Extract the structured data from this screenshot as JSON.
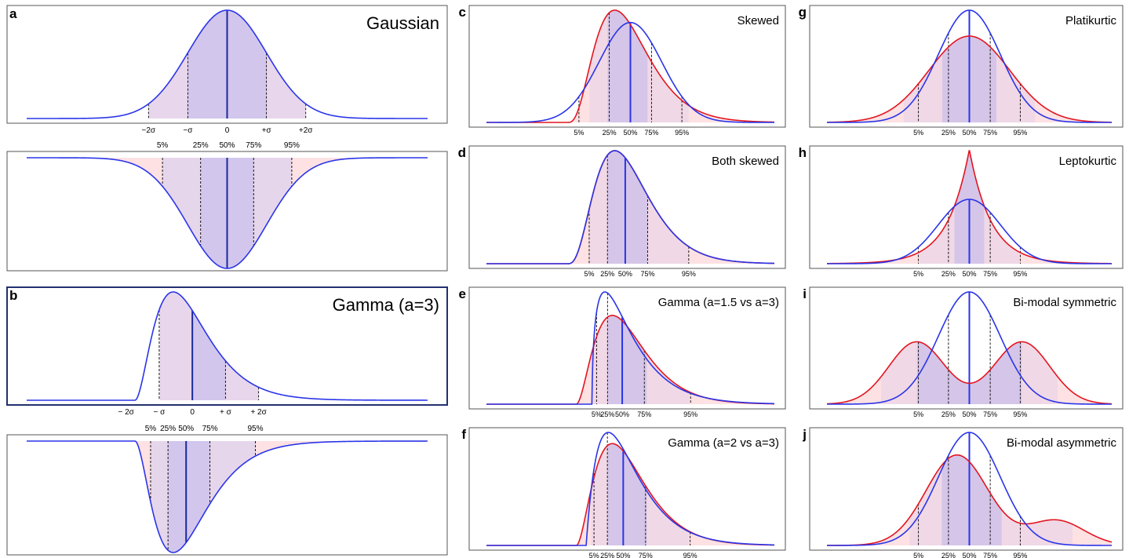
{
  "colors": {
    "reference": "#2a35e8",
    "comparison": "#e3151f",
    "reference_fill": "#d2c6ed",
    "comparison_fill": "#fde1e3"
  },
  "chart_data": [
    {
      "panel": "a",
      "title": "Gaussian",
      "type": "area",
      "dist": "normal",
      "mean": 0,
      "sd": 1,
      "xlim": [
        -5.1,
        5.1
      ],
      "mark_lines": [
        -2,
        -1,
        0,
        1,
        2
      ],
      "tick_labels": [
        "−2σ",
        "−σ",
        "0",
        "+σ",
        "+2σ"
      ],
      "quantile_view": {
        "quantiles": [
          0.05,
          0.25,
          0.5,
          0.75,
          0.95
        ],
        "tick_labels": [
          "5%",
          "25%",
          "50%",
          "75%",
          "95%"
        ]
      }
    },
    {
      "panel": "b",
      "title": "Gamma (a=3)",
      "type": "area",
      "dist": "gamma",
      "shape": 3,
      "xlim": [
        -5,
        7.1
      ],
      "mark_lines": [
        -1,
        0,
        1,
        2
      ],
      "tick_labels": [
        "− 2σ",
        "− σ",
        "0",
        "+ σ",
        "+ 2σ"
      ],
      "quantile_view": {
        "quantiles": [
          0.05,
          0.25,
          0.5,
          0.75,
          0.95
        ],
        "tick_labels": [
          "5%",
          "25%",
          "50%",
          "75%",
          "95%"
        ]
      }
    },
    {
      "panel": "c",
      "title": "Skewed",
      "type": "area",
      "reference": {
        "dist": "normal",
        "mean": 0,
        "sd": 1
      },
      "comparison": {
        "dist": "gamma",
        "shape": 4
      },
      "quantiles": [
        0.05,
        0.25,
        0.5,
        0.75,
        0.95
      ],
      "tick_labels": [
        "5%",
        "25%",
        "50%",
        "75%",
        "95%"
      ]
    },
    {
      "panel": "d",
      "title": "Both skewed",
      "type": "area",
      "reference": {
        "dist": "gamma",
        "shape": 4
      },
      "comparison": {
        "dist": "gamma",
        "shape": 4
      },
      "quantiles": [
        0.05,
        0.25,
        0.5,
        0.75,
        0.95
      ],
      "tick_labels": [
        "5%",
        "25%",
        "50%",
        "75%",
        "95%"
      ]
    },
    {
      "panel": "e",
      "title": "Gamma (a=1.5 vs a=3)",
      "type": "area",
      "reference": {
        "dist": "gamma",
        "shape": 1.5
      },
      "comparison": {
        "dist": "gamma",
        "shape": 3
      },
      "quantiles": [
        0.05,
        0.25,
        0.5,
        0.75,
        0.95
      ],
      "tick_labels": [
        "5%",
        "25%",
        "50%",
        "75%",
        "95%"
      ]
    },
    {
      "panel": "f",
      "title": "Gamma (a=2 vs a=3)",
      "type": "area",
      "reference": {
        "dist": "gamma",
        "shape": 2
      },
      "comparison": {
        "dist": "gamma",
        "shape": 3
      },
      "quantiles": [
        0.05,
        0.25,
        0.5,
        0.75,
        0.95
      ],
      "tick_labels": [
        "5%",
        "25%",
        "50%",
        "75%",
        "95%"
      ]
    },
    {
      "panel": "g",
      "title": "Platikurtic",
      "type": "area",
      "reference": {
        "dist": "normal",
        "mean": 0,
        "sd": 1
      },
      "comparison": {
        "dist": "normal",
        "mean": 0,
        "sd": 1.3
      },
      "quantiles": [
        0.05,
        0.25,
        0.5,
        0.75,
        0.95
      ],
      "tick_labels": [
        "5%",
        "25%",
        "50%",
        "75%",
        "95%"
      ]
    },
    {
      "panel": "h",
      "title": "Leptokurtic",
      "type": "area",
      "reference": {
        "dist": "normal",
        "mean": 0,
        "sd": 1
      },
      "comparison": {
        "dist": "laplace",
        "mean": 0
      },
      "quantiles": [
        0.05,
        0.25,
        0.5,
        0.75,
        0.95
      ],
      "tick_labels": [
        "5%",
        "25%",
        "50%",
        "75%",
        "95%"
      ]
    },
    {
      "panel": "i",
      "title": "Bi-modal symmetric",
      "type": "area",
      "reference": {
        "dist": "normal",
        "mean": 0,
        "sd": 1
      },
      "comparison": {
        "dist": "mixture",
        "components": [
          {
            "mean": -1.7,
            "sd": 0.9,
            "weight": 0.5
          },
          {
            "mean": 1.7,
            "sd": 0.9,
            "weight": 0.5
          }
        ]
      },
      "quantiles": [
        0.05,
        0.25,
        0.5,
        0.75,
        0.95
      ],
      "tick_labels": [
        "5%",
        "25%",
        "50%",
        "75%",
        "95%"
      ]
    },
    {
      "panel": "j",
      "title": "Bi-modal asymmetric",
      "type": "area",
      "reference": {
        "dist": "normal",
        "mean": 0,
        "sd": 1
      },
      "comparison": {
        "dist": "mixture",
        "components": [
          {
            "mean": -0.4,
            "sd": 1,
            "weight": 0.8
          },
          {
            "mean": 2.8,
            "sd": 0.9,
            "weight": 0.2
          }
        ]
      },
      "quantiles": [
        0.05,
        0.25,
        0.5,
        0.75,
        0.95
      ],
      "tick_labels": [
        "5%",
        "25%",
        "50%",
        "75%",
        "95%"
      ]
    }
  ]
}
